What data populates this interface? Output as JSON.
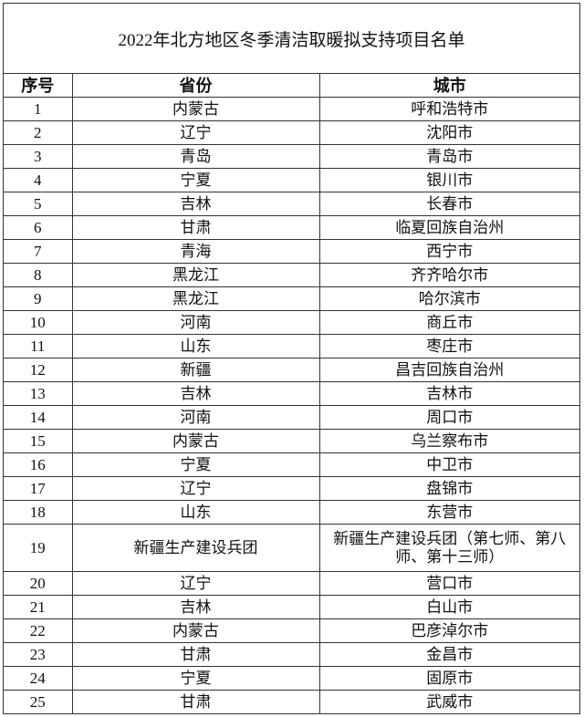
{
  "title": "2022年北方地区冬季清洁取暖拟支持项目名单",
  "headers": [
    "序号",
    "省份",
    "城市"
  ],
  "rows": [
    {
      "no": "1",
      "province": "内蒙古",
      "city": "呼和浩特市"
    },
    {
      "no": "2",
      "province": "辽宁",
      "city": "沈阳市"
    },
    {
      "no": "3",
      "province": "青岛",
      "city": "青岛市"
    },
    {
      "no": "4",
      "province": "宁夏",
      "city": "银川市"
    },
    {
      "no": "5",
      "province": "吉林",
      "city": "长春市"
    },
    {
      "no": "6",
      "province": "甘肃",
      "city": "临夏回族自治州"
    },
    {
      "no": "7",
      "province": "青海",
      "city": "西宁市"
    },
    {
      "no": "8",
      "province": "黑龙江",
      "city": "齐齐哈尔市"
    },
    {
      "no": "9",
      "province": "黑龙江",
      "city": "哈尔滨市"
    },
    {
      "no": "10",
      "province": "河南",
      "city": "商丘市"
    },
    {
      "no": "11",
      "province": "山东",
      "city": "枣庄市"
    },
    {
      "no": "12",
      "province": "新疆",
      "city": "昌吉回族自治州"
    },
    {
      "no": "13",
      "province": "吉林",
      "city": "吉林市"
    },
    {
      "no": "14",
      "province": "河南",
      "city": "周口市"
    },
    {
      "no": "15",
      "province": "内蒙古",
      "city": "乌兰察布市"
    },
    {
      "no": "16",
      "province": "宁夏",
      "city": "中卫市"
    },
    {
      "no": "17",
      "province": "辽宁",
      "city": "盘锦市"
    },
    {
      "no": "18",
      "province": "山东",
      "city": "东营市"
    },
    {
      "no": "19",
      "province": "新疆生产建设兵团",
      "city": "新疆生产建设兵团（第七师、第八师、第十三师）"
    },
    {
      "no": "20",
      "province": "辽宁",
      "city": "营口市"
    },
    {
      "no": "21",
      "province": "吉林",
      "city": "白山市"
    },
    {
      "no": "22",
      "province": "内蒙古",
      "city": "巴彦淖尔市"
    },
    {
      "no": "23",
      "province": "甘肃",
      "city": "金昌市"
    },
    {
      "no": "24",
      "province": "宁夏",
      "city": "固原市"
    },
    {
      "no": "25",
      "province": "甘肃",
      "city": "武威市"
    }
  ]
}
